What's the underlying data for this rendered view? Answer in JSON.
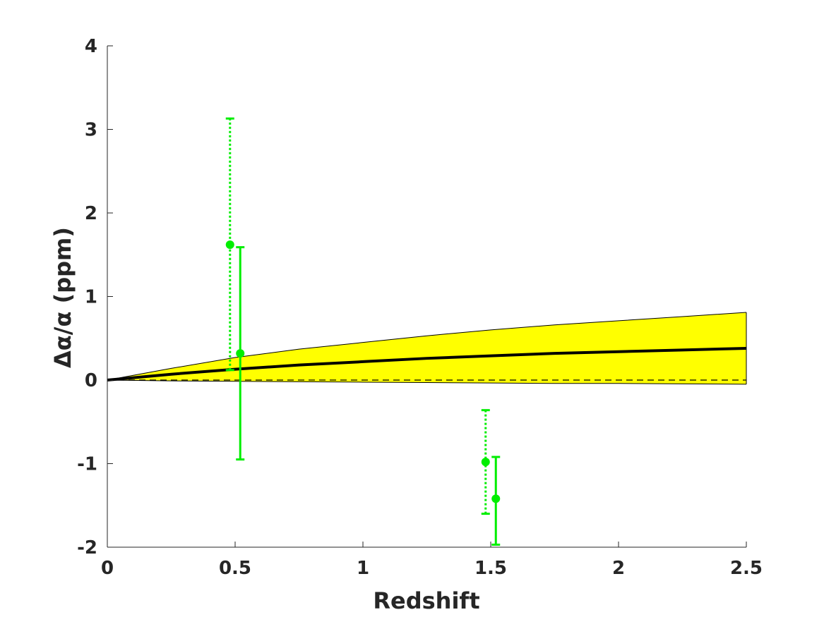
{
  "chart_data": {
    "type": "line",
    "xlabel": "Redshift",
    "ylabel": "Δα/α (ppm)",
    "xlim": [
      0,
      2.5
    ],
    "ylim": [
      -2,
      4
    ],
    "x_ticks": [
      0,
      0.5,
      1,
      1.5,
      2,
      2.5
    ],
    "y_ticks": [
      -2,
      -1,
      0,
      1,
      2,
      3,
      4
    ],
    "x_tick_labels": [
      "0",
      "0.5",
      "1",
      "1.5",
      "2",
      "2.5"
    ],
    "y_tick_labels": [
      "-2",
      "-1",
      "0",
      "1",
      "2",
      "3",
      "4"
    ],
    "grid": false,
    "band": {
      "color": "#ffff00",
      "x": [
        0,
        0.25,
        0.5,
        0.75,
        1,
        1.25,
        1.5,
        1.75,
        2,
        2.25,
        2.5
      ],
      "upper": [
        0,
        0.14,
        0.27,
        0.37,
        0.45,
        0.53,
        0.6,
        0.66,
        0.71,
        0.76,
        0.81
      ],
      "lower": [
        0,
        -0.01,
        -0.015,
        -0.02,
        -0.025,
        -0.03,
        -0.035,
        -0.04,
        -0.04,
        -0.045,
        -0.05
      ]
    },
    "model_line": {
      "color": "#000000",
      "x": [
        0,
        0.25,
        0.5,
        0.75,
        1,
        1.25,
        1.5,
        1.75,
        2,
        2.25,
        2.5
      ],
      "y": [
        0,
        0.07,
        0.13,
        0.18,
        0.22,
        0.26,
        0.29,
        0.32,
        0.34,
        0.36,
        0.38
      ]
    },
    "zero_line": {
      "y": 0,
      "style": "dashed",
      "color": "#000000"
    },
    "points": [
      {
        "x": 0.48,
        "y": 1.62,
        "low": 0.12,
        "high": 3.13,
        "style": "dotted"
      },
      {
        "x": 0.52,
        "y": 0.32,
        "low": -0.95,
        "high": 1.59,
        "style": "solid"
      },
      {
        "x": 1.48,
        "y": -0.98,
        "low": -1.6,
        "high": -0.36,
        "style": "dotted"
      },
      {
        "x": 1.52,
        "y": -1.42,
        "low": -1.97,
        "high": -0.92,
        "style": "solid"
      }
    ],
    "point_color": "#00ee00"
  }
}
